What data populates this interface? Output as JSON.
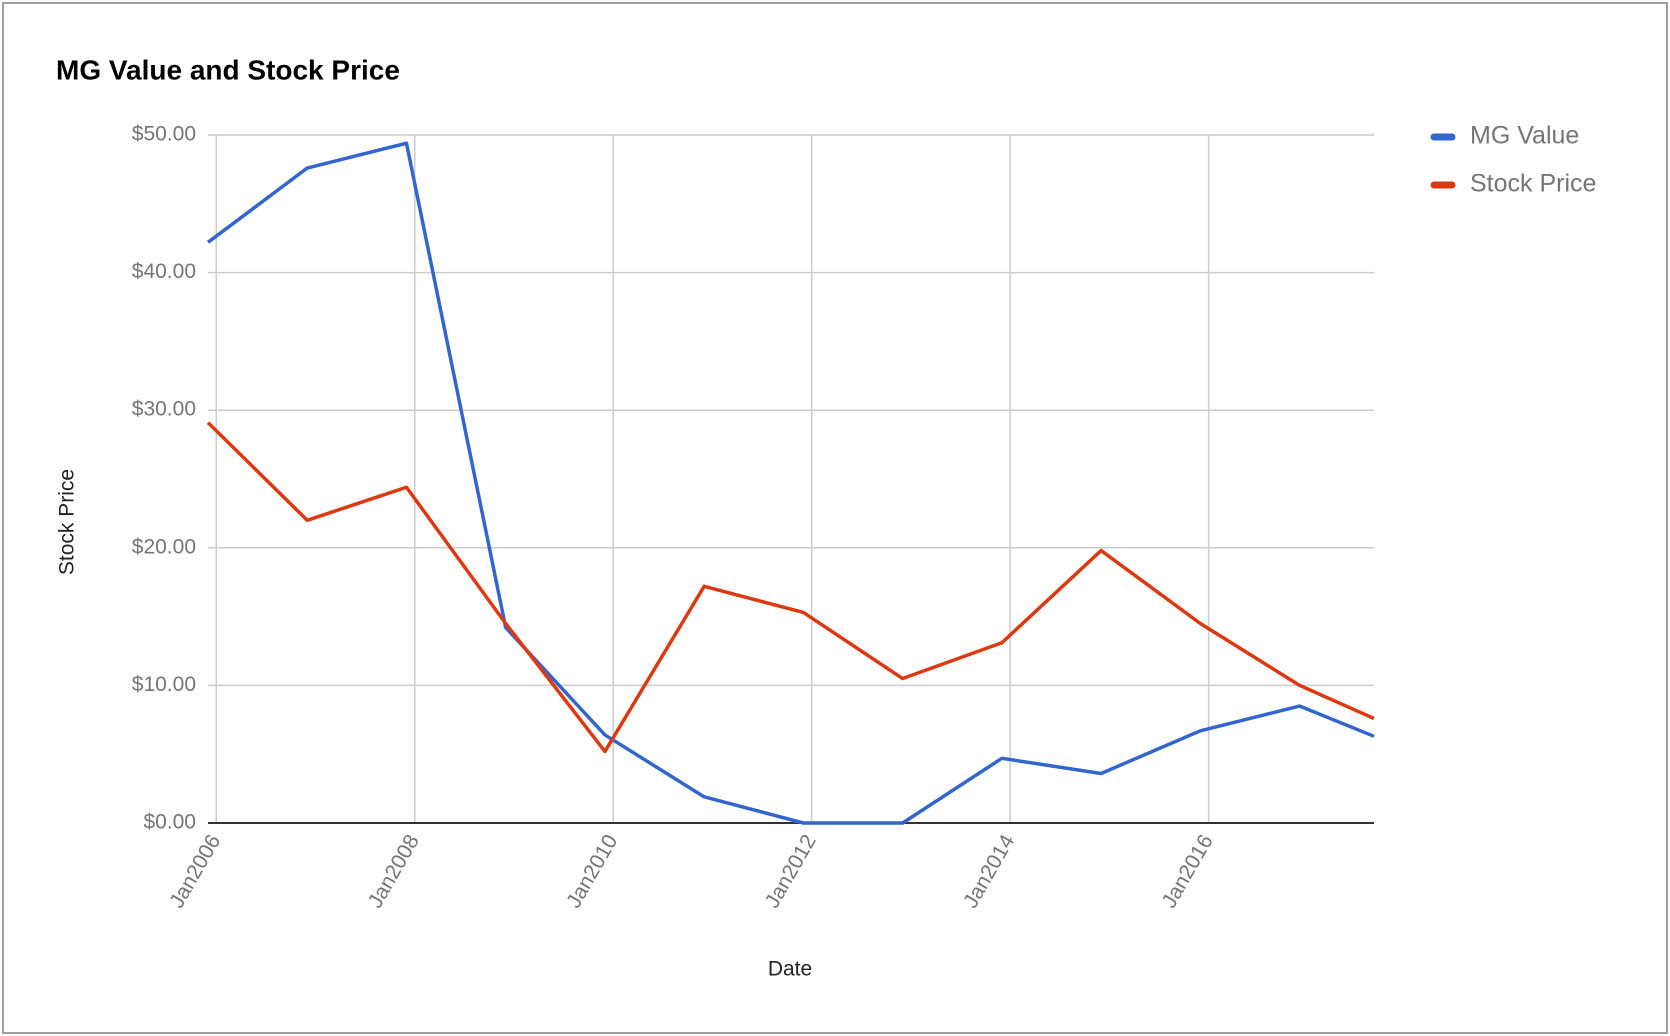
{
  "chart_data": {
    "type": "line",
    "title": "MG Value and Stock Price",
    "x_label": "Date",
    "y_label": "Stock Price",
    "x": [
      "2005-12",
      "2006-12",
      "2007-12",
      "2008-12",
      "2009-12",
      "2010-12",
      "2011-12",
      "2012-12",
      "2013-12",
      "2014-12",
      "2015-12",
      "2016-12",
      "2017-09"
    ],
    "xlim": [
      "2005-12",
      "2017-09"
    ],
    "xticks": [
      {
        "value": "2006-01",
        "label": "Jan2006"
      },
      {
        "value": "2008-01",
        "label": "Jan2008"
      },
      {
        "value": "2010-01",
        "label": "Jan2010"
      },
      {
        "value": "2012-01",
        "label": "Jan2012"
      },
      {
        "value": "2014-01",
        "label": "Jan2014"
      },
      {
        "value": "2016-01",
        "label": "Jan2016"
      }
    ],
    "ylim": [
      0,
      50
    ],
    "yticks": [
      {
        "value": 0,
        "label": "$0.00"
      },
      {
        "value": 10,
        "label": "$10.00"
      },
      {
        "value": 20,
        "label": "$20.00"
      },
      {
        "value": 30,
        "label": "$30.00"
      },
      {
        "value": 40,
        "label": "$40.00"
      },
      {
        "value": 50,
        "label": "$50.00"
      }
    ],
    "grid": true,
    "legend": "right",
    "series": [
      {
        "name": "MG Value",
        "color": "#3366cc",
        "values": [
          42.2,
          47.6,
          49.4,
          14.2,
          6.4,
          1.9,
          0,
          0,
          4.7,
          3.6,
          6.7,
          8.5,
          6.3
        ]
      },
      {
        "name": "Stock Price",
        "color": "#dc3912",
        "values": [
          29.1,
          22.0,
          24.4,
          14.5,
          5.2,
          17.2,
          15.3,
          10.5,
          13.1,
          19.8,
          14.5,
          10.0,
          7.6
        ]
      }
    ]
  }
}
